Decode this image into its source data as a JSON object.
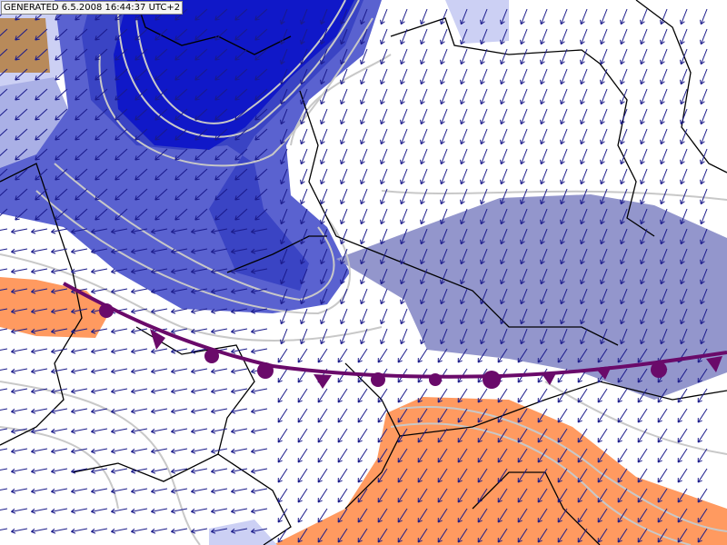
{
  "header": {
    "timestamp": "GENERATED 6.5.2008 16:44:37 UTC+2"
  }
}
